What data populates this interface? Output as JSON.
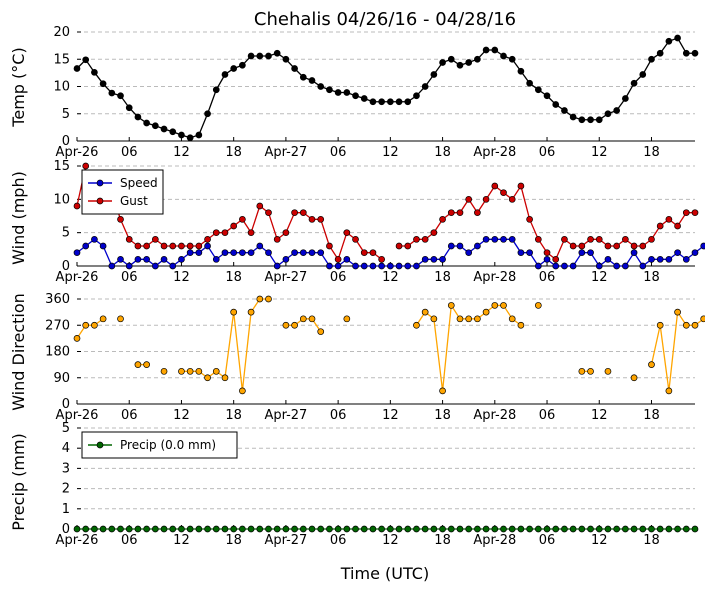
{
  "chart_data": {
    "title": "Chehalis 04/26/16 - 04/28/16",
    "xlabel": "Time (UTC)",
    "x_tick_labels": [
      "Apr-26",
      "06",
      "12",
      "18",
      "Apr-27",
      "06",
      "12",
      "18",
      "Apr-28",
      "06",
      "12",
      "18"
    ],
    "x_tick_hours": [
      0,
      6,
      12,
      18,
      24,
      30,
      36,
      42,
      48,
      54,
      60,
      66
    ],
    "x_range_hours": [
      0,
      71
    ],
    "x_time_step_hours": 1,
    "panels": [
      {
        "type": "line",
        "ylabel": "Temp (°C)",
        "ylim": [
          0,
          20
        ],
        "yticks": [
          0,
          5,
          10,
          15,
          20
        ],
        "grid": true,
        "legend": false,
        "series": [
          {
            "color": "#000000",
            "connect": true,
            "values": [
              13.3,
              14.9,
              12.6,
              10.5,
              8.8,
              8.3,
              6.1,
              4.4,
              3.3,
              2.8,
              2.2,
              1.7,
              1.1,
              0.6,
              1.1,
              5.0,
              9.4,
              12.2,
              13.3,
              13.9,
              15.6,
              15.6,
              15.6,
              16.1,
              15.0,
              13.3,
              11.7,
              11.1,
              10.0,
              9.4,
              8.9,
              8.9,
              8.3,
              7.8,
              7.2,
              7.2,
              7.2,
              7.2,
              7.2,
              8.3,
              10.0,
              12.2,
              14.4,
              15.0,
              13.9,
              14.4,
              15.0,
              16.7,
              16.7,
              15.6,
              15.0,
              12.8,
              10.6,
              9.4,
              8.3,
              6.7,
              5.6,
              4.4,
              3.9,
              3.9,
              3.9,
              5.0,
              5.6,
              7.8,
              10.6,
              12.2,
              15.0,
              16.1,
              18.3,
              18.9,
              16.1,
              16.1
            ]
          }
        ]
      },
      {
        "type": "line",
        "ylabel": "Wind (mph)",
        "ylim": [
          0,
          15
        ],
        "yticks": [
          0,
          5,
          10,
          15
        ],
        "grid": true,
        "legend": true,
        "legend_position": "upper-left",
        "series": [
          {
            "name": "Speed",
            "color": "#0000cc",
            "connect": true,
            "values": [
              2,
              3,
              4,
              3,
              0,
              1,
              0,
              1,
              1,
              0,
              1,
              0,
              1,
              2,
              2,
              3,
              1,
              2,
              2,
              2,
              2,
              3,
              2,
              0,
              1,
              2,
              2,
              2,
              2,
              0,
              0,
              1,
              0,
              0,
              0,
              0,
              0,
              0,
              0,
              0,
              1,
              1,
              1,
              3,
              3,
              2,
              3,
              4,
              4,
              4,
              4,
              2,
              2,
              0,
              1,
              0,
              0,
              0,
              2,
              2,
              0,
              1,
              0,
              0,
              2,
              0,
              1,
              1,
              1,
              2,
              1,
              2,
              3
            ]
          },
          {
            "name": "Gust",
            "color": "#cc0000",
            "connect": true,
            "values": [
              9,
              15,
              null,
              null,
              11,
              7,
              4,
              3,
              3,
              4,
              3,
              3,
              3,
              3,
              3,
              4,
              5,
              5,
              6,
              7,
              5,
              9,
              8,
              4,
              5,
              8,
              8,
              7,
              7,
              3,
              1,
              5,
              4,
              2,
              2,
              1,
              null,
              3,
              3,
              4,
              4,
              5,
              7,
              8,
              8,
              10,
              8,
              10,
              12,
              11,
              10,
              12,
              7,
              4,
              2,
              1,
              4,
              3,
              3,
              4,
              4,
              3,
              3,
              4,
              3,
              3,
              4,
              6,
              7,
              6,
              8,
              8
            ]
          }
        ]
      },
      {
        "type": "scatter-line",
        "ylabel": "Wind Direction",
        "ylim": [
          0,
          360
        ],
        "yticks": [
          0,
          90,
          180,
          270,
          360
        ],
        "grid": true,
        "legend": false,
        "series": [
          {
            "color": "#ffa500",
            "connect": false,
            "values": [
              225,
              270,
              270,
              292,
              null,
              292,
              null,
              135,
              135,
              null,
              112,
              null,
              112,
              112,
              112,
              90,
              112,
              90,
              315,
              45,
              315,
              360,
              360,
              null,
              270,
              270,
              292,
              292,
              248,
              null,
              null,
              292,
              null,
              null,
              null,
              null,
              null,
              null,
              null,
              270,
              315,
              292,
              45,
              338,
              292,
              292,
              292,
              315,
              338,
              338,
              292,
              270,
              null,
              338,
              null,
              null,
              null,
              null,
              112,
              112,
              null,
              112,
              null,
              null,
              90,
              null,
              135,
              270,
              45,
              315,
              270,
              270,
              292
            ]
          }
        ]
      },
      {
        "type": "line",
        "ylabel": "Precip (mm)",
        "ylim": [
          0,
          5
        ],
        "yticks": [
          0,
          1,
          2,
          3,
          4,
          5
        ],
        "grid": true,
        "legend": true,
        "legend_position": "upper-left",
        "series": [
          {
            "name": "Precip (0.0 mm)",
            "color": "#006600",
            "connect": true,
            "values": [
              0,
              0,
              0,
              0,
              0,
              0,
              0,
              0,
              0,
              0,
              0,
              0,
              0,
              0,
              0,
              0,
              0,
              0,
              0,
              0,
              0,
              0,
              0,
              0,
              0,
              0,
              0,
              0,
              0,
              0,
              0,
              0,
              0,
              0,
              0,
              0,
              0,
              0,
              0,
              0,
              0,
              0,
              0,
              0,
              0,
              0,
              0,
              0,
              0,
              0,
              0,
              0,
              0,
              0,
              0,
              0,
              0,
              0,
              0,
              0,
              0,
              0,
              0,
              0,
              0,
              0,
              0,
              0,
              0,
              0,
              0,
              0
            ]
          }
        ]
      }
    ]
  }
}
